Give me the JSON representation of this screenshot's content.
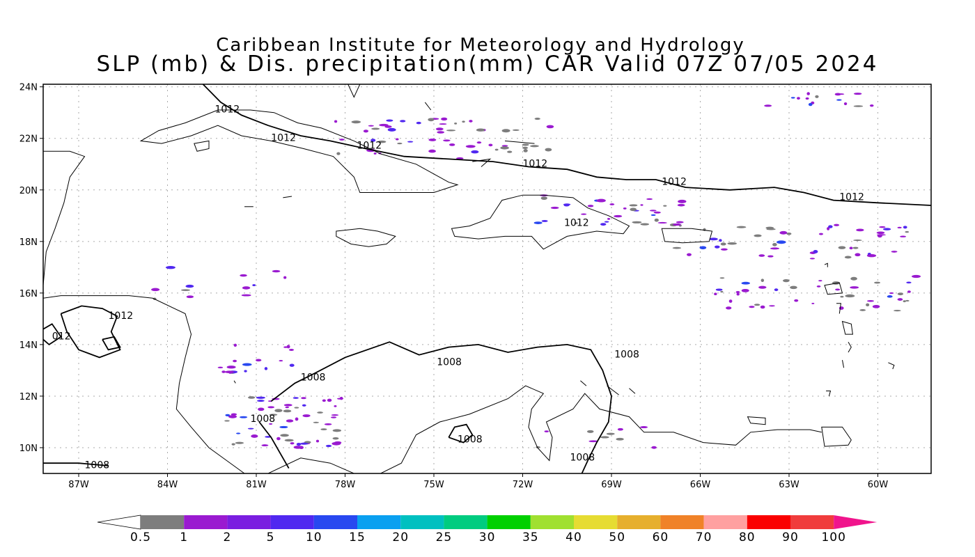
{
  "title": {
    "line1": "Caribbean Institute for Meteorology and Hydrology",
    "line2": "SLP (mb) & Dis. precipitation(mm) CAR Valid 07Z 07/05 2024"
  },
  "map": {
    "lon_range": [
      -88.2,
      -58.2
    ],
    "lat_range": [
      9.0,
      24.1
    ],
    "lat_ticks": [
      "10N",
      "12N",
      "14N",
      "16N",
      "18N",
      "20N",
      "22N",
      "24N"
    ],
    "lon_ticks": [
      "87W",
      "84W",
      "81W",
      "78W",
      "75W",
      "72W",
      "69W",
      "66W",
      "63W",
      "60W"
    ],
    "grid": true
  },
  "isobars": {
    "levels": [
      "1012",
      "1008"
    ],
    "labels": [
      {
        "text": "1012",
        "lon": -82.4,
        "lat": 23.0
      },
      {
        "text": "1012",
        "lon": -80.5,
        "lat": 21.9
      },
      {
        "text": "1012",
        "lon": -77.6,
        "lat": 21.6
      },
      {
        "text": "1012",
        "lon": -72.0,
        "lat": 20.9
      },
      {
        "text": "1012",
        "lon": -67.3,
        "lat": 20.2
      },
      {
        "text": "1012",
        "lon": -61.3,
        "lat": 19.6
      },
      {
        "text": "1012",
        "lon": -70.6,
        "lat": 18.6
      },
      {
        "text": "1012",
        "lon": -86.0,
        "lat": 15.0
      },
      {
        "text": "012",
        "lon": -87.9,
        "lat": 14.2
      },
      {
        "text": "1008",
        "lon": -74.9,
        "lat": 13.2
      },
      {
        "text": "1008",
        "lon": -68.9,
        "lat": 13.5
      },
      {
        "text": "1008",
        "lon": -79.5,
        "lat": 12.6
      },
      {
        "text": "1008",
        "lon": -81.2,
        "lat": 11.0
      },
      {
        "text": "1008",
        "lon": -74.2,
        "lat": 10.2
      },
      {
        "text": "1008",
        "lon": -70.4,
        "lat": 9.5
      },
      {
        "text": "1008",
        "lon": -86.8,
        "lat": 9.2
      }
    ]
  },
  "colorbar": {
    "labels": [
      "0.5",
      "1",
      "2",
      "5",
      "10",
      "15",
      "20",
      "25",
      "30",
      "35",
      "40",
      "50",
      "60",
      "70",
      "80",
      "90",
      "100"
    ],
    "colors": [
      "#7d7d7d",
      "#9a1ad0",
      "#7a1ee0",
      "#5028f0",
      "#2848f0",
      "#0aa0f0",
      "#00c0c0",
      "#00cc80",
      "#00d000",
      "#a0e030",
      "#e6dc32",
      "#e6af2d",
      "#f08228",
      "#ffa0a0",
      "#fa0000",
      "#f03c3c",
      "#f0148c"
    ]
  },
  "precip_colors": {
    "light": "#7d7d7d",
    "mid": "#9a1ad0",
    "strong": "#5028f0",
    "peak": "#2848f0"
  }
}
